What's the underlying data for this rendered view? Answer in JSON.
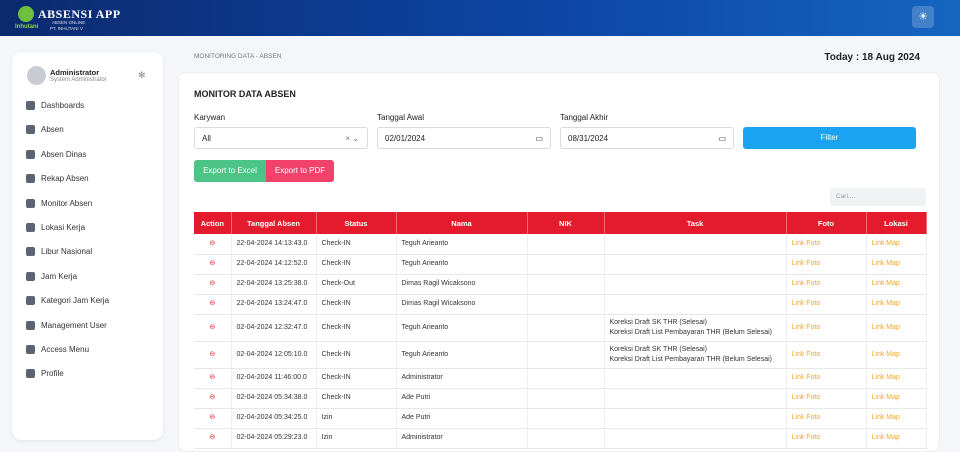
{
  "header": {
    "app_title": "ABSENSI APP",
    "app_subtitle": "ABSEN ONLINE",
    "company": "PT. INHUTANI V",
    "logo_text": "Inhutani"
  },
  "sidebar": {
    "user_name": "Administrator",
    "user_role": "System Administrator",
    "menu": [
      "Dashboards",
      "Absen",
      "Absen Dinas",
      "Rekap Absen",
      "Monitor Absen",
      "Lokasi Kerja",
      "Libur Nasional",
      "Jam Kerja",
      "Kategori Jam Kerja",
      "Management User",
      "Access Menu",
      "Profile"
    ]
  },
  "breadcrumb": [
    "MONITORING DATA",
    "ABSEN"
  ],
  "today": "Today : 18 Aug 2024",
  "card": {
    "title": "MONITOR DATA ABSEN",
    "filters": [
      {
        "label": "Karywan",
        "value": "All"
      },
      {
        "label": "Tanggal Awal",
        "value": "02/01/2024"
      },
      {
        "label": "Tanggal Akhir",
        "value": "08/31/2024"
      }
    ],
    "filter_button": "Filter",
    "export_excel": "Export to Excel",
    "export_pdf": "Export to PDF",
    "search_placeholder": "Cari....",
    "table": {
      "columns": [
        "Action",
        "Tanggal Absen",
        "Status",
        "Nama",
        "NIK",
        "Task",
        "Foto",
        "Lokasi"
      ],
      "rows": [
        {
          "tanggal": "22-04-2024 14:13:43.0",
          "status": "Check-IN",
          "nama": "Teguh Arieanto",
          "task": [],
          "foto": "Link Foto",
          "lokasi": "Link Map"
        },
        {
          "tanggal": "22-04-2024 14:12:52.0",
          "status": "Check-IN",
          "nama": "Teguh Arieanto",
          "task": [],
          "foto": "Link Foto",
          "lokasi": "Link Map"
        },
        {
          "tanggal": "22-04-2024 13:25:38.0",
          "status": "Check-Out",
          "nama": "Dimas Ragil Wicaksono",
          "task": [],
          "foto": "Link Foto",
          "lokasi": "Link Map"
        },
        {
          "tanggal": "22-04-2024 13:24:47.0",
          "status": "Check-IN",
          "nama": "Dimas Ragil Wicaksono",
          "task": [],
          "foto": "Link Foto",
          "lokasi": "Link Map"
        },
        {
          "tanggal": "02-04-2024 12:32:47.0",
          "status": "Check-IN",
          "nama": "Teguh Arieanto",
          "task": [
            "Koreksi Draft SK THR (Selesai)",
            "Koreksi Draft List Pembayaran THR (Belum Selesai)"
          ],
          "foto": "Link Foto",
          "lokasi": "Link Map"
        },
        {
          "tanggal": "02-04-2024 12:05:10.0",
          "status": "Check-IN",
          "nama": "Teguh Arieanto",
          "task": [
            "Koreksi Draft SK THR (Selesai)",
            "Koreksi Draft List Pembayaran THR (Belum Selesai)"
          ],
          "foto": "Link Foto",
          "lokasi": "Link Map"
        },
        {
          "tanggal": "02-04-2024 11:46:00.0",
          "status": "Check-IN",
          "nama": "Administrator",
          "task": [],
          "foto": "Link Foto",
          "lokasi": "Link Map"
        },
        {
          "tanggal": "02-04-2024 05:34:38.0",
          "status": "Check-IN",
          "nama": "Ade Putri",
          "task": [],
          "foto": "Link Foto",
          "lokasi": "Link Map"
        },
        {
          "tanggal": "02-04-2024 05:34:25.0",
          "status": "Izin",
          "nama": "Ade Putri",
          "task": [],
          "foto": "Link Foto",
          "lokasi": "Link Map"
        },
        {
          "tanggal": "02-04-2024 05:29:23.0",
          "status": "Izin",
          "nama": "Administrator",
          "task": [],
          "foto": "Link Foto",
          "lokasi": "Link Map"
        }
      ]
    }
  }
}
